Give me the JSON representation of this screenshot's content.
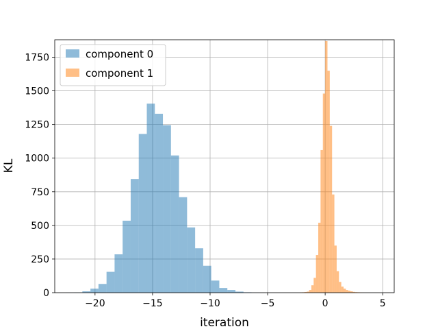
{
  "chart_data": {
    "type": "histogram",
    "title": "",
    "xlabel": "iteration",
    "ylabel": "KL",
    "xlim": [
      -23.5,
      6
    ],
    "ylim": [
      0,
      1880
    ],
    "xticks": [
      -20,
      -15,
      -10,
      -5,
      0,
      5
    ],
    "yticks": [
      0,
      250,
      500,
      750,
      1000,
      1250,
      1500,
      1750
    ],
    "grid": true,
    "legend_position": "upper-left",
    "series": [
      {
        "name": "component 0",
        "color": "#1f77b4",
        "opacity": 0.5,
        "bin_width": 0.7,
        "bin_starts": [
          -22.5,
          -21.8,
          -21.1,
          -20.4,
          -19.7,
          -19.0,
          -18.3,
          -17.6,
          -16.9,
          -16.2,
          -15.5,
          -14.8,
          -14.1,
          -13.4,
          -12.7,
          -12.0,
          -11.3,
          -10.6,
          -9.9,
          -9.2,
          -8.5,
          -7.8,
          -7.1,
          -6.4
        ],
        "counts": [
          1,
          2,
          10,
          30,
          65,
          155,
          285,
          535,
          845,
          1180,
          1405,
          1330,
          1245,
          1020,
          710,
          485,
          330,
          200,
          90,
          35,
          20,
          8,
          3,
          1
        ]
      },
      {
        "name": "component 1",
        "color": "#ff7f0e",
        "opacity": 0.5,
        "bin_width": 0.2,
        "bin_starts": [
          -2.2,
          -2.0,
          -1.8,
          -1.6,
          -1.4,
          -1.2,
          -1.0,
          -0.8,
          -0.6,
          -0.4,
          -0.2,
          0.0,
          0.2,
          0.4,
          0.6,
          0.8,
          1.0,
          1.2,
          1.4,
          1.6,
          1.8,
          2.0,
          2.2,
          2.4,
          2.6,
          2.8,
          3.0,
          3.2
        ],
        "counts": [
          2,
          3,
          5,
          8,
          20,
          55,
          110,
          280,
          520,
          1060,
          1480,
          1870,
          1650,
          1240,
          730,
          350,
          160,
          80,
          45,
          30,
          20,
          15,
          10,
          6,
          4,
          3,
          2,
          1
        ]
      }
    ]
  }
}
